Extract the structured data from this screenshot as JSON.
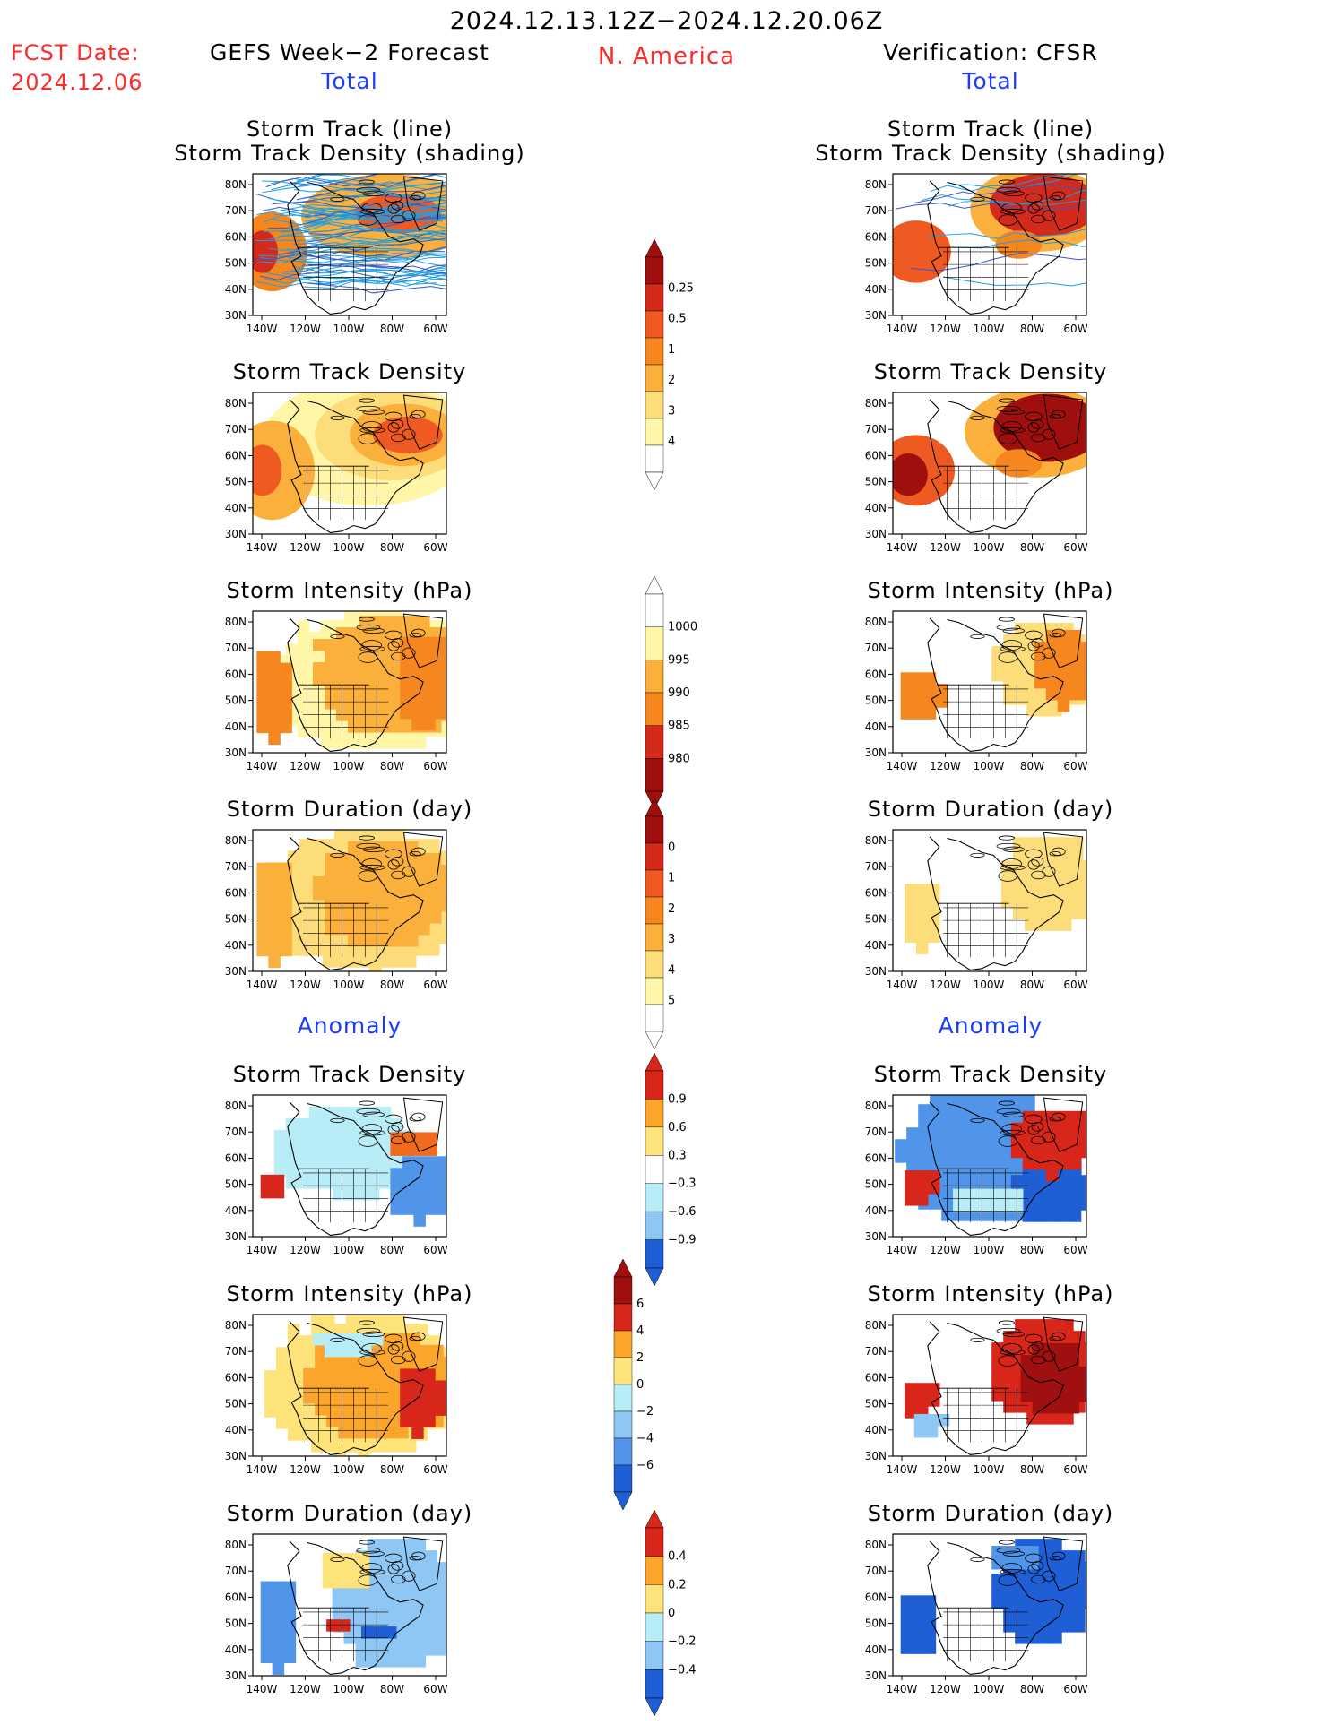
{
  "header": {
    "period": "2024.12.13.12Z−2024.12.20.06Z",
    "region": "N. America",
    "fcst_label": "FCST Date:",
    "fcst_date": "2024.12.06"
  },
  "columns": {
    "left": {
      "title": "GEFS Week−2 Forecast",
      "total_label": "Total",
      "anomaly_label": "Anomaly"
    },
    "right": {
      "title": "Verification: CFSR",
      "total_label": "Total",
      "anomaly_label": "Anomaly"
    }
  },
  "panel_titles": {
    "track_line": "Storm Track (line)",
    "track_shading": "Storm Track Density (shading)",
    "density": "Storm Track Density",
    "intensity": "Storm Intensity (hPa)",
    "duration": "Storm Duration (day)"
  },
  "axes": {
    "lat_labels": [
      "80N",
      "70N",
      "60N",
      "50N",
      "40N",
      "30N"
    ],
    "lon_labels": [
      "140W",
      "120W",
      "100W",
      "80W",
      "60W"
    ]
  },
  "colorbars": {
    "total_density": [
      "0.25",
      "0.5",
      "1",
      "2",
      "3",
      "4"
    ],
    "total_intensity": [
      "1000",
      "995",
      "990",
      "985",
      "980"
    ],
    "total_duration": [
      "0",
      "1",
      "2",
      "3",
      "4",
      "5"
    ],
    "anom_density": [
      "0.9",
      "0.6",
      "0.3",
      "−0.3",
      "−0.6",
      "−0.9"
    ],
    "anom_intensity": [
      "6",
      "4",
      "2",
      "0",
      "−2",
      "−4",
      "−6"
    ],
    "anom_duration": [
      "0.4",
      "0.2",
      "0",
      "−0.2",
      "−0.4"
    ]
  },
  "palette": {
    "warm": [
      "#fff6a8",
      "#fddc7a",
      "#fbb03b",
      "#f6871f",
      "#ee5a22",
      "#d42a1c",
      "#9f0f0d"
    ],
    "anom_pos": [
      "#fde37a",
      "#fba62b",
      "#f06b1d",
      "#d8261a"
    ],
    "anom_neg": [
      "#b8ecf7",
      "#8ec6f4",
      "#5095ea",
      "#1f5fd6"
    ],
    "track_line": "#1f9ee0",
    "track_dark": "#3b55c9"
  }
}
